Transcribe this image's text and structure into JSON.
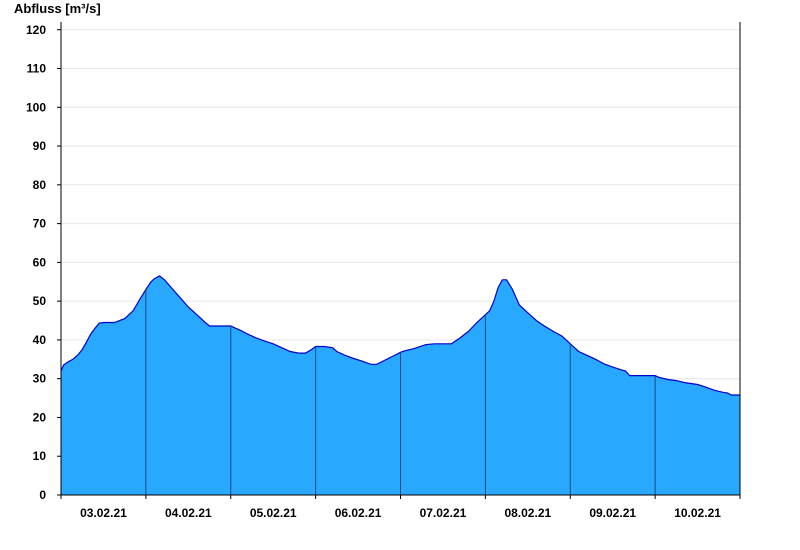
{
  "chart_data": {
    "type": "area",
    "ylabel": "Abfluss [m³/s]",
    "xlabel": "",
    "ylim": [
      0,
      122
    ],
    "yticks": [
      0,
      10,
      20,
      30,
      40,
      50,
      60,
      70,
      80,
      90,
      100,
      110,
      120
    ],
    "grid": true,
    "day_labels": [
      "03.02.21",
      "04.02.21",
      "05.02.21",
      "06.02.21",
      "07.02.21",
      "08.02.21",
      "09.02.21",
      "10.02.21"
    ],
    "x_unit": "days since 02.02.21 18:00",
    "xlim": [
      0,
      8
    ],
    "fill_color": "#29a8ff",
    "line_color": "#0000cc",
    "series": [
      {
        "values": [
          [
            0.0,
            32.0
          ],
          [
            0.03,
            33.5
          ],
          [
            0.08,
            34.3
          ],
          [
            0.14,
            35.0
          ],
          [
            0.2,
            36.2
          ],
          [
            0.25,
            37.5
          ],
          [
            0.3,
            39.5
          ],
          [
            0.35,
            41.5
          ],
          [
            0.4,
            43.0
          ],
          [
            0.45,
            44.3
          ],
          [
            0.5,
            44.5
          ],
          [
            0.58,
            44.5
          ],
          [
            0.63,
            44.5
          ],
          [
            0.75,
            45.5
          ],
          [
            0.85,
            47.5
          ],
          [
            0.93,
            50.5
          ],
          [
            1.0,
            53.0
          ],
          [
            1.06,
            55.0
          ],
          [
            1.1,
            55.8
          ],
          [
            1.16,
            56.5
          ],
          [
            1.22,
            55.5
          ],
          [
            1.3,
            53.5
          ],
          [
            1.4,
            51.0
          ],
          [
            1.5,
            48.5
          ],
          [
            1.6,
            46.5
          ],
          [
            1.7,
            44.5
          ],
          [
            1.75,
            43.6
          ],
          [
            1.9,
            43.6
          ],
          [
            2.0,
            43.6
          ],
          [
            2.06,
            43.0
          ],
          [
            2.12,
            42.4
          ],
          [
            2.2,
            41.5
          ],
          [
            2.3,
            40.5
          ],
          [
            2.4,
            39.7
          ],
          [
            2.5,
            39.0
          ],
          [
            2.6,
            38.0
          ],
          [
            2.7,
            37.0
          ],
          [
            2.8,
            36.6
          ],
          [
            2.88,
            36.6
          ],
          [
            2.95,
            37.5
          ],
          [
            3.0,
            38.3
          ],
          [
            3.1,
            38.3
          ],
          [
            3.2,
            38.0
          ],
          [
            3.25,
            37.0
          ],
          [
            3.35,
            36.0
          ],
          [
            3.45,
            35.2
          ],
          [
            3.55,
            34.5
          ],
          [
            3.65,
            33.7
          ],
          [
            3.72,
            33.7
          ],
          [
            3.8,
            34.6
          ],
          [
            3.9,
            35.7
          ],
          [
            4.0,
            36.8
          ],
          [
            4.05,
            37.2
          ],
          [
            4.15,
            37.7
          ],
          [
            4.3,
            38.8
          ],
          [
            4.4,
            39.0
          ],
          [
            4.6,
            39.0
          ],
          [
            4.7,
            40.5
          ],
          [
            4.8,
            42.2
          ],
          [
            4.9,
            44.5
          ],
          [
            5.0,
            46.5
          ],
          [
            5.05,
            47.5
          ],
          [
            5.1,
            50.0
          ],
          [
            5.15,
            53.5
          ],
          [
            5.2,
            55.5
          ],
          [
            5.25,
            55.5
          ],
          [
            5.32,
            53.0
          ],
          [
            5.4,
            49.0
          ],
          [
            5.5,
            47.0
          ],
          [
            5.6,
            45.0
          ],
          [
            5.7,
            43.5
          ],
          [
            5.8,
            42.2
          ],
          [
            5.9,
            41.0
          ],
          [
            6.0,
            39.0
          ],
          [
            6.1,
            37.0
          ],
          [
            6.2,
            36.0
          ],
          [
            6.3,
            35.0
          ],
          [
            6.4,
            33.8
          ],
          [
            6.5,
            33.0
          ],
          [
            6.6,
            32.3
          ],
          [
            6.65,
            32.0
          ],
          [
            6.7,
            30.8
          ],
          [
            7.0,
            30.8
          ],
          [
            7.05,
            30.3
          ],
          [
            7.15,
            29.8
          ],
          [
            7.25,
            29.5
          ],
          [
            7.35,
            29.0
          ],
          [
            7.5,
            28.5
          ],
          [
            7.6,
            27.8
          ],
          [
            7.7,
            27.0
          ],
          [
            7.8,
            26.5
          ],
          [
            7.85,
            26.3
          ],
          [
            7.9,
            25.8
          ],
          [
            8.0,
            25.8
          ]
        ]
      }
    ]
  }
}
